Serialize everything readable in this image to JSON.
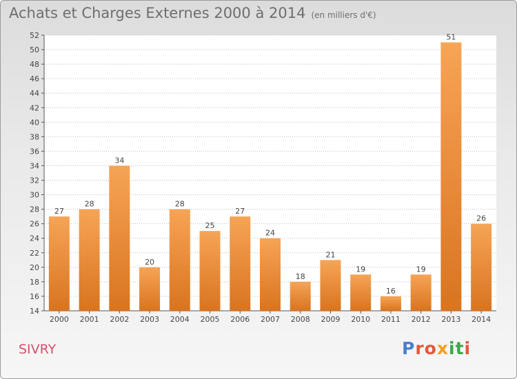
{
  "header": {
    "title": "Achats et Charges Externes 2000 à 2014",
    "subtitle": "(en milliers d'€)"
  },
  "footer": {
    "place": "SIVRY",
    "logo": "Proxiti"
  },
  "colors": {
    "bar_top": "#f6a456",
    "bar_bottom": "#d9741f",
    "place_text": "#d4506a",
    "logo_letters": [
      "#4a7fd0",
      "#e05a3a",
      "#e05a3a",
      "#f0a020",
      "#3aa84a",
      "#3aa84a",
      "#e05a3a"
    ]
  },
  "chart_data": {
    "type": "bar",
    "title": "Achats et Charges Externes 2000 à 2014",
    "subtitle": "(en milliers d'€)",
    "categories": [
      "2000",
      "2001",
      "2002",
      "2003",
      "2004",
      "2005",
      "2006",
      "2007",
      "2008",
      "2009",
      "2010",
      "2011",
      "2012",
      "2013",
      "2014"
    ],
    "values": [
      27,
      28,
      34,
      20,
      28,
      25,
      27,
      24,
      18,
      21,
      19,
      16,
      19,
      51,
      26
    ],
    "ylim": [
      14,
      52
    ],
    "yticks": [
      14,
      16,
      18,
      20,
      22,
      24,
      26,
      28,
      30,
      32,
      34,
      36,
      38,
      40,
      42,
      44,
      46,
      48,
      50,
      52
    ],
    "grid": true
  }
}
